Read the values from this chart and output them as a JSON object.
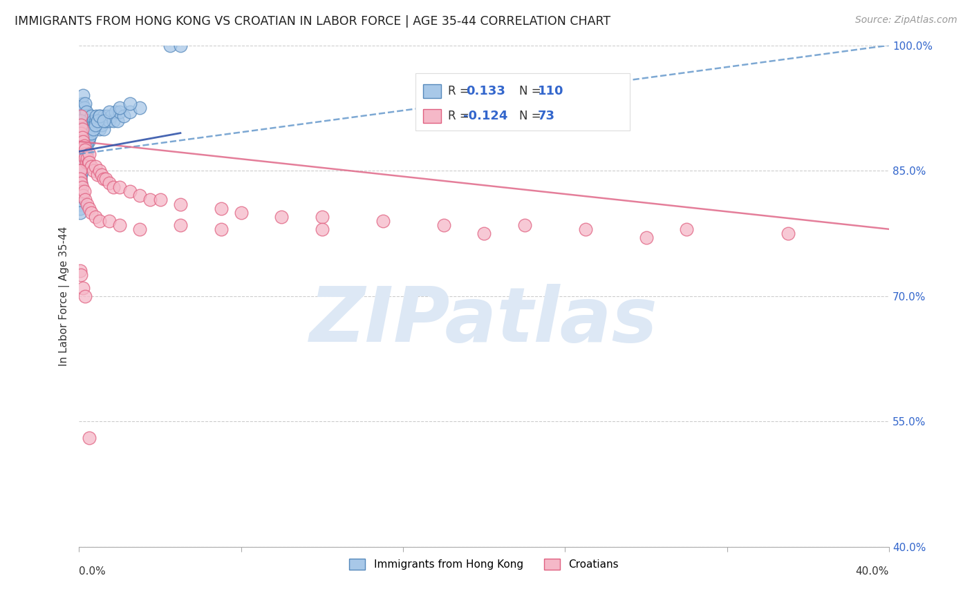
{
  "title": "IMMIGRANTS FROM HONG KONG VS CROATIAN IN LABOR FORCE | AGE 35-44 CORRELATION CHART",
  "source": "Source: ZipAtlas.com",
  "ylabel": "In Labor Force | Age 35-44",
  "y_ticks": [
    40.0,
    55.0,
    70.0,
    85.0,
    100.0
  ],
  "x_min": 0.0,
  "x_max": 40.0,
  "y_min": 40.0,
  "y_max": 100.0,
  "hk_R": 0.133,
  "hk_N": 110,
  "cr_R": -0.124,
  "cr_N": 73,
  "hk_color": "#a8c8e8",
  "hk_edge_color": "#5588bb",
  "cr_color": "#f5b8c8",
  "cr_edge_color": "#e06080",
  "hk_trend_color": "#6699cc",
  "cr_trend_color": "#e06888",
  "hk_solid_color": "#3355aa",
  "watermark_text": "ZIPatlas",
  "watermark_color": "#dde8f5",
  "background_color": "#ffffff",
  "hk_trend_y0": 87.0,
  "hk_trend_y1": 100.0,
  "cr_trend_y0": 88.5,
  "cr_trend_y1": 78.0,
  "hk_solid_x0": 0.0,
  "hk_solid_x1": 5.0,
  "hk_solid_y0": 87.3,
  "hk_solid_y1": 89.5,
  "hk_x": [
    0.05,
    0.05,
    0.05,
    0.05,
    0.05,
    0.1,
    0.1,
    0.1,
    0.1,
    0.1,
    0.15,
    0.15,
    0.15,
    0.15,
    0.2,
    0.2,
    0.2,
    0.2,
    0.25,
    0.25,
    0.25,
    0.3,
    0.3,
    0.3,
    0.35,
    0.35,
    0.4,
    0.4,
    0.45,
    0.45,
    0.5,
    0.5,
    0.55,
    0.6,
    0.65,
    0.7,
    0.75,
    0.8,
    0.85,
    0.9,
    0.95,
    1.0,
    1.0,
    1.1,
    1.1,
    1.2,
    1.2,
    1.3,
    1.4,
    1.5,
    1.6,
    1.7,
    1.8,
    1.9,
    2.0,
    2.2,
    2.5,
    3.0,
    0.05,
    0.05,
    0.05,
    0.05,
    0.05,
    0.05,
    0.05,
    0.05,
    0.05,
    0.05,
    0.05,
    0.05,
    0.05,
    0.05,
    0.05,
    0.05,
    0.05,
    0.1,
    0.1,
    0.1,
    0.1,
    0.1,
    0.1,
    0.1,
    0.1,
    0.1,
    0.15,
    0.15,
    0.15,
    0.15,
    0.2,
    0.2,
    0.2,
    0.25,
    0.25,
    0.3,
    0.3,
    0.35,
    0.35,
    0.4,
    0.5,
    0.6,
    0.7,
    0.8,
    0.9,
    1.0,
    1.2,
    1.5,
    2.0,
    2.5,
    4.5,
    5.0
  ],
  "hk_y": [
    87.0,
    88.0,
    89.0,
    86.0,
    85.0,
    90.0,
    91.0,
    88.5,
    87.5,
    86.5,
    92.0,
    93.0,
    90.5,
    89.0,
    94.0,
    91.5,
    89.5,
    88.0,
    92.5,
    91.0,
    89.5,
    93.0,
    91.5,
    90.0,
    92.0,
    90.5,
    91.0,
    89.5,
    90.0,
    88.5,
    91.0,
    89.0,
    90.5,
    91.5,
    90.0,
    91.0,
    90.5,
    91.0,
    91.5,
    90.5,
    91.0,
    91.5,
    90.0,
    91.0,
    90.5,
    91.5,
    90.0,
    91.0,
    91.5,
    91.0,
    91.5,
    91.0,
    92.0,
    91.0,
    92.0,
    91.5,
    92.0,
    92.5,
    87.0,
    86.5,
    86.0,
    85.5,
    85.0,
    84.5,
    84.0,
    83.5,
    83.0,
    82.5,
    82.0,
    81.5,
    81.0,
    80.5,
    80.0,
    90.0,
    89.5,
    91.0,
    90.5,
    89.5,
    88.5,
    87.5,
    86.5,
    85.5,
    84.5,
    83.5,
    88.0,
    87.0,
    86.0,
    85.0,
    89.0,
    88.0,
    87.0,
    88.0,
    87.0,
    88.5,
    87.5,
    88.0,
    87.0,
    88.5,
    89.0,
    89.5,
    90.0,
    90.5,
    91.0,
    91.5,
    91.0,
    92.0,
    92.5,
    93.0,
    100.0,
    100.0
  ],
  "cr_x": [
    0.05,
    0.05,
    0.05,
    0.05,
    0.05,
    0.1,
    0.1,
    0.1,
    0.15,
    0.15,
    0.2,
    0.2,
    0.25,
    0.25,
    0.3,
    0.3,
    0.35,
    0.4,
    0.45,
    0.5,
    0.5,
    0.6,
    0.7,
    0.8,
    0.9,
    1.0,
    1.1,
    1.2,
    1.3,
    1.5,
    1.7,
    2.0,
    2.5,
    3.0,
    3.5,
    4.0,
    5.0,
    7.0,
    8.0,
    10.0,
    12.0,
    15.0,
    18.0,
    22.0,
    25.0,
    30.0,
    35.0,
    0.05,
    0.05,
    0.1,
    0.1,
    0.15,
    0.2,
    0.25,
    0.3,
    0.4,
    0.5,
    0.6,
    0.8,
    1.0,
    1.5,
    2.0,
    3.0,
    5.0,
    7.0,
    12.0,
    20.0,
    28.0,
    0.05,
    0.1,
    0.2,
    0.3,
    0.5
  ],
  "cr_y": [
    88.0,
    87.0,
    86.0,
    85.0,
    84.0,
    91.5,
    90.5,
    89.5,
    90.0,
    89.0,
    88.5,
    87.5,
    88.0,
    87.0,
    87.5,
    86.5,
    86.0,
    86.5,
    86.0,
    87.0,
    86.0,
    85.5,
    85.0,
    85.5,
    84.5,
    85.0,
    84.5,
    84.0,
    84.0,
    83.5,
    83.0,
    83.0,
    82.5,
    82.0,
    81.5,
    81.5,
    81.0,
    80.5,
    80.0,
    79.5,
    79.5,
    79.0,
    78.5,
    78.5,
    78.0,
    78.0,
    77.5,
    85.0,
    84.0,
    83.5,
    82.5,
    83.0,
    82.0,
    82.5,
    81.5,
    81.0,
    80.5,
    80.0,
    79.5,
    79.0,
    79.0,
    78.5,
    78.0,
    78.5,
    78.0,
    78.0,
    77.5,
    77.0,
    73.0,
    72.5,
    71.0,
    70.0,
    53.0
  ]
}
